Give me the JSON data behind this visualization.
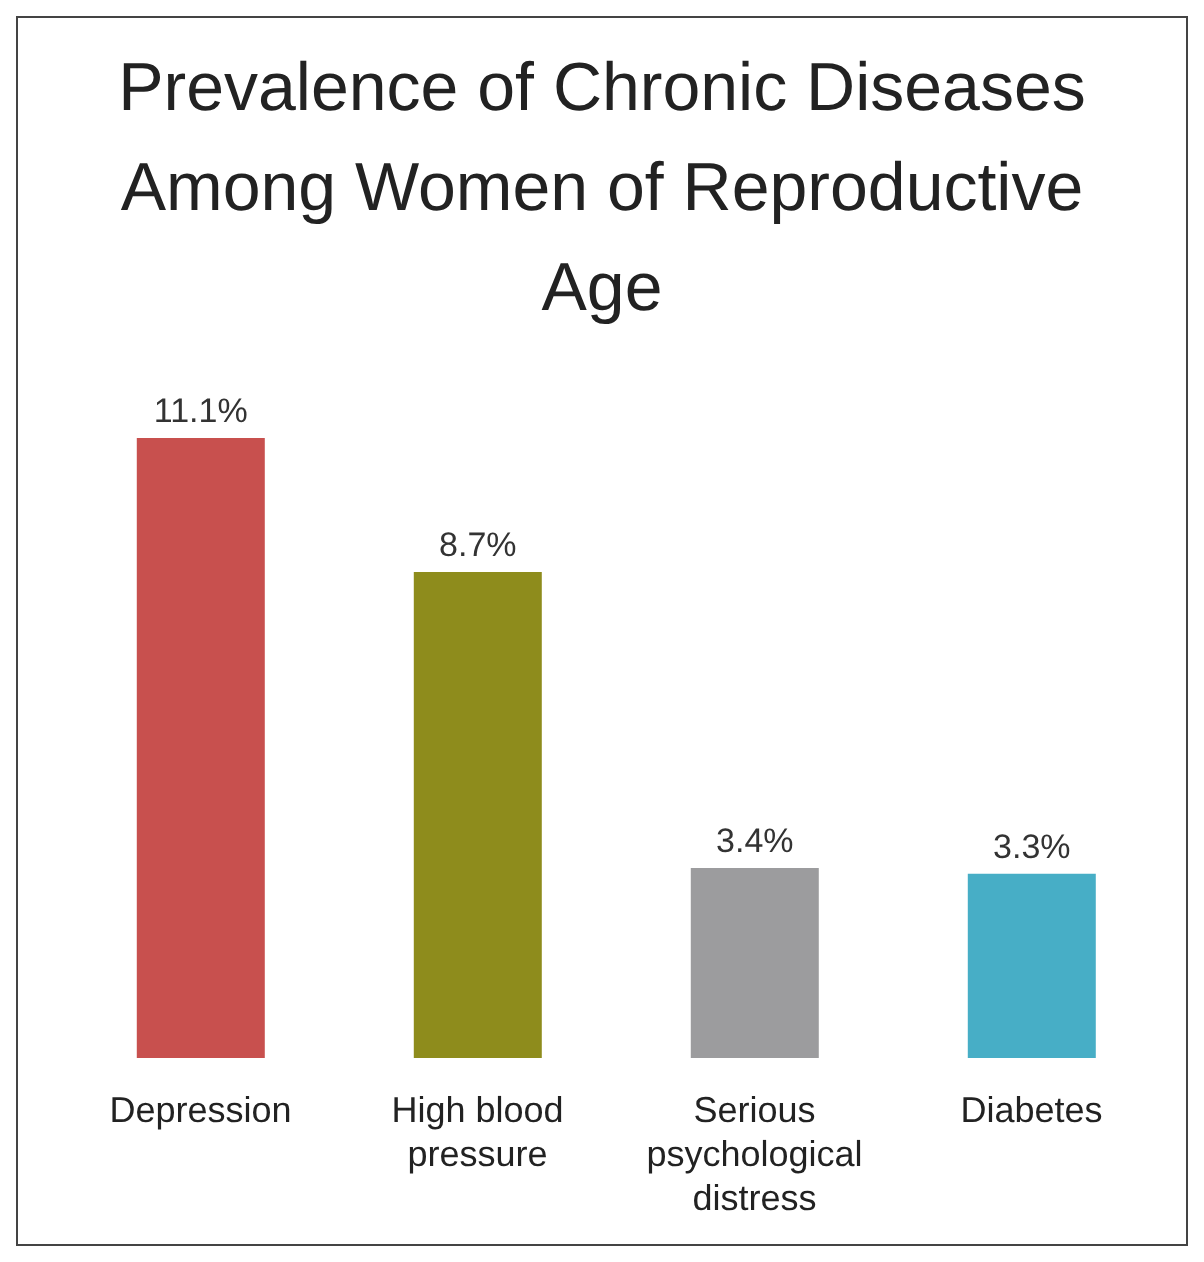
{
  "chart_data": {
    "type": "bar",
    "title": "Prevalence of Chronic Diseases Among Women of Reproductive Age",
    "categories": [
      "Depression",
      "High blood pressure",
      "Serious psychological distress",
      "Diabetes"
    ],
    "values": [
      11.1,
      8.7,
      3.4,
      3.3
    ],
    "colors": [
      "#c8504e",
      "#8e8c1c",
      "#9c9c9e",
      "#47aec6"
    ],
    "value_labels": [
      "11.1%",
      "8.7%",
      "3.4%",
      "3.3%"
    ],
    "grid": false,
    "legend": false
  }
}
